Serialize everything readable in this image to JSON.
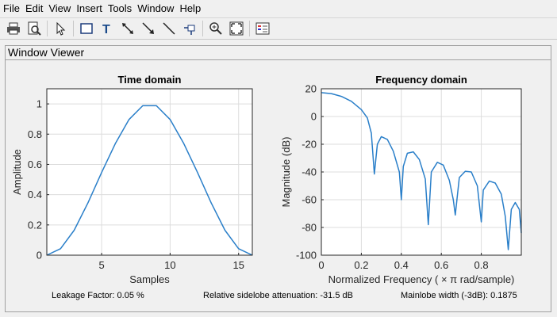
{
  "menu": [
    "File",
    "Edit",
    "View",
    "Insert",
    "Tools",
    "Window",
    "Help"
  ],
  "toolbar_icons": [
    "print-icon",
    "print-preview-icon",
    "pointer-icon",
    "rectangle-icon",
    "text-icon",
    "double-arrow-icon",
    "arrow-icon",
    "line-icon",
    "pin-icon",
    "zoom-in-icon",
    "fit-view-icon",
    "legend-icon"
  ],
  "panel": {
    "title": "Window Viewer"
  },
  "status": {
    "leakage": "Leakage Factor: 0.05 %",
    "sidelobe": "Relative sidelobe attenuation: -31.5 dB",
    "mainlobe": "Mainlobe width (-3dB): 0.1875"
  },
  "colors": {
    "line": "#2a7fc9",
    "grid": "#dcdcdc"
  },
  "chart_data": [
    {
      "type": "line",
      "title": "Time domain",
      "xlabel": "Samples",
      "ylabel": "Amplitude",
      "xlim": [
        1,
        16
      ],
      "ylim": [
        0,
        1.1
      ],
      "xticks": [
        5,
        10,
        15
      ],
      "yticks": [
        0,
        0.2,
        0.4,
        0.6,
        0.8,
        1
      ],
      "x": [
        1,
        2,
        3,
        4,
        5,
        6,
        7,
        8,
        9,
        10,
        11,
        12,
        13,
        14,
        15,
        16
      ],
      "y": [
        0.0,
        0.043,
        0.165,
        0.345,
        0.547,
        0.737,
        0.897,
        0.988,
        0.988,
        0.897,
        0.737,
        0.547,
        0.345,
        0.165,
        0.043,
        0.0
      ],
      "grid": true
    },
    {
      "type": "line",
      "title": "Frequency domain",
      "xlabel": "Normalized Frequency  ( × π rad/sample)",
      "ylabel": "Magnitude (dB)",
      "xlim": [
        0,
        1
      ],
      "ylim": [
        -100,
        20
      ],
      "xticks": [
        0,
        0.2,
        0.4,
        0.6,
        0.8
      ],
      "yticks": [
        20,
        0,
        -20,
        -40,
        -60,
        -80,
        -100
      ],
      "x": [
        0,
        0.05,
        0.1,
        0.15,
        0.2,
        0.23,
        0.25,
        0.265,
        0.28,
        0.3,
        0.33,
        0.36,
        0.39,
        0.4,
        0.41,
        0.43,
        0.46,
        0.49,
        0.52,
        0.535,
        0.55,
        0.58,
        0.61,
        0.64,
        0.66,
        0.67,
        0.69,
        0.72,
        0.75,
        0.78,
        0.8,
        0.81,
        0.84,
        0.87,
        0.9,
        0.92,
        0.935,
        0.95,
        0.97,
        0.99,
        1.0
      ],
      "y": [
        17.2,
        16.5,
        14.5,
        11.0,
        5.0,
        -1.0,
        -12.0,
        -41.5,
        -20.0,
        -14.5,
        -16.5,
        -25.0,
        -40.0,
        -60.0,
        -36.0,
        -26.5,
        -25.5,
        -31.0,
        -45.0,
        -78.0,
        -40.0,
        -33.0,
        -35.0,
        -46.0,
        -60.0,
        -71.0,
        -44.0,
        -39.5,
        -40.0,
        -50.0,
        -76.0,
        -53.0,
        -46.5,
        -48.0,
        -56.0,
        -72.0,
        -96.0,
        -67.0,
        -62.0,
        -67.0,
        -84.0
      ],
      "grid": true
    }
  ]
}
